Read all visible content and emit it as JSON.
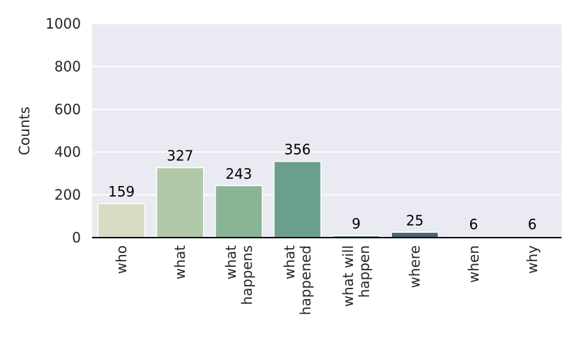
{
  "chart_data": {
    "type": "bar",
    "title": "",
    "xlabel": "",
    "ylabel": "Counts",
    "ylim": [
      0,
      1000
    ],
    "yticks": [
      0,
      200,
      400,
      600,
      800,
      1000
    ],
    "grid": true,
    "background": "#EAEAF2",
    "categories": [
      {
        "lines": [
          "who"
        ]
      },
      {
        "lines": [
          "what"
        ]
      },
      {
        "lines": [
          "what",
          "happens"
        ]
      },
      {
        "lines": [
          "what",
          "happened"
        ]
      },
      {
        "lines": [
          "what will",
          "happen"
        ]
      },
      {
        "lines": [
          "where"
        ]
      },
      {
        "lines": [
          "when"
        ]
      },
      {
        "lines": [
          "why"
        ]
      }
    ],
    "values": [
      159,
      327,
      243,
      356,
      9,
      25,
      6,
      6
    ],
    "data_labels": [
      "159",
      "327",
      "243",
      "356",
      "9",
      "25",
      "6",
      "6"
    ],
    "colors": [
      "#D7DDC4",
      "#B0C8A8",
      "#8AB595",
      "#6A9E8D",
      "#5C8682",
      "#4A6478",
      "#3B4866",
      "#302F50"
    ]
  }
}
